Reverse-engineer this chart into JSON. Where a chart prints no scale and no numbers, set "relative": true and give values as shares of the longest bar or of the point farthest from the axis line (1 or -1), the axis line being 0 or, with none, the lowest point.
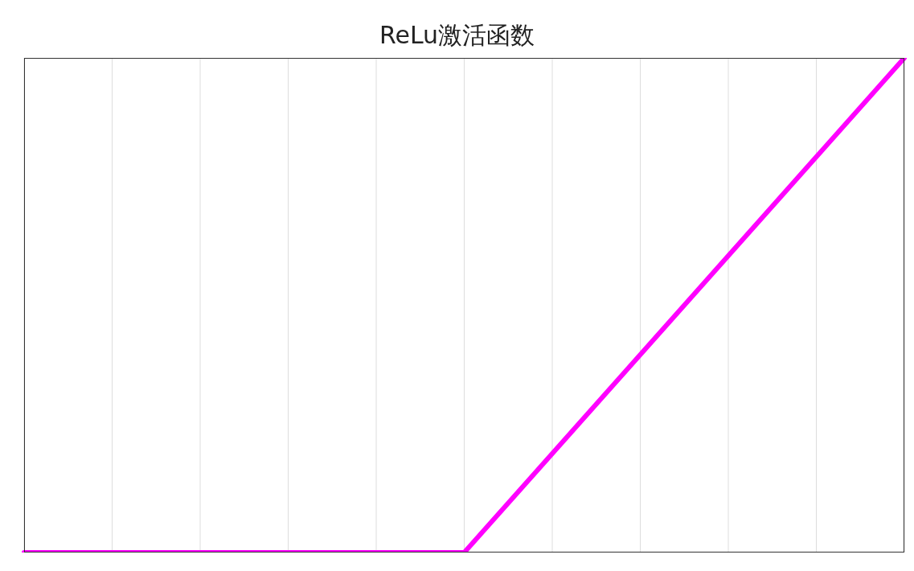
{
  "chart_data": {
    "type": "line",
    "title": "ReLu激活函数",
    "relative": true,
    "grid": "x",
    "categories": [
      null,
      null,
      null,
      null,
      null,
      null,
      null,
      null,
      null,
      null,
      null
    ],
    "series": [
      {
        "color": "#ff00ff",
        "values": [
          0,
          0,
          0,
          0,
          0,
          0,
          0.2,
          0.4,
          0.6,
          0.8,
          1
        ]
      }
    ]
  }
}
